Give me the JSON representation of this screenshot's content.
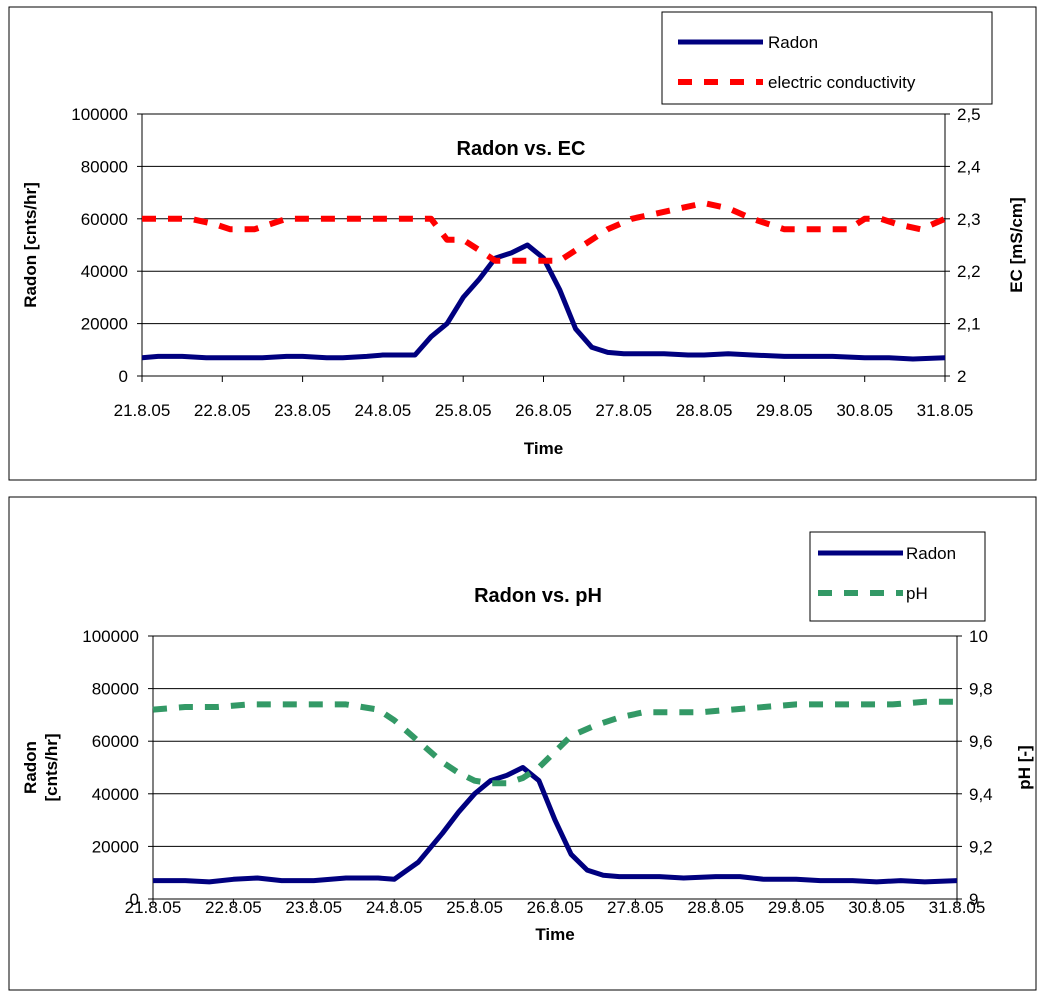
{
  "chart_data": [
    {
      "type": "line",
      "title": "Radon vs. EC",
      "xlabel": "Time",
      "ylabel": "Radon [cnts/hr]",
      "y2label": "EC [mS/cm]",
      "x_tick_labels": [
        "21.8.05",
        "22.8.05",
        "23.8.05",
        "24.8.05",
        "25.8.05",
        "26.8.05",
        "27.8.05",
        "28.8.05",
        "29.8.05",
        "30.8.05",
        "31.8.05"
      ],
      "x_range": [
        0,
        10
      ],
      "ylim": [
        0,
        100000
      ],
      "y_ticks": [
        "0",
        "20000",
        "40000",
        "60000",
        "80000",
        "100000"
      ],
      "y2lim": [
        2.0,
        2.5
      ],
      "y2_ticks": [
        "2",
        "2,1",
        "2,2",
        "2,3",
        "2,4",
        "2,5"
      ],
      "grid": true,
      "legend_position": "top-right",
      "series": [
        {
          "name": "Radon",
          "axis": "left",
          "color": "#00007F",
          "style": "solid",
          "x": [
            0,
            0.2,
            0.5,
            0.8,
            1.0,
            1.2,
            1.5,
            1.8,
            2.0,
            2.3,
            2.5,
            2.8,
            3.0,
            3.2,
            3.4,
            3.6,
            3.8,
            4.0,
            4.2,
            4.4,
            4.6,
            4.8,
            5.0,
            5.2,
            5.4,
            5.6,
            5.8,
            6.0,
            6.2,
            6.5,
            6.8,
            7.0,
            7.3,
            7.6,
            8.0,
            8.3,
            8.6,
            9.0,
            9.3,
            9.6,
            10.0
          ],
          "values": [
            7000,
            7500,
            7500,
            7000,
            7000,
            7000,
            7000,
            7500,
            7500,
            7000,
            7000,
            7500,
            8000,
            8000,
            8000,
            15000,
            20000,
            30000,
            37000,
            45000,
            47000,
            50000,
            45000,
            33000,
            18000,
            11000,
            9000,
            8500,
            8500,
            8500,
            8000,
            8000,
            8500,
            8000,
            7500,
            7500,
            7500,
            7000,
            7000,
            6500,
            7000
          ]
        },
        {
          "name": "electric conductivity",
          "axis": "right",
          "color": "#FF0000",
          "style": "dashed",
          "x": [
            0,
            0.3,
            0.6,
            0.9,
            1.1,
            1.4,
            1.8,
            2.2,
            2.6,
            3.0,
            3.3,
            3.6,
            3.8,
            4.0,
            4.2,
            4.4,
            4.6,
            4.9,
            5.2,
            5.5,
            5.8,
            6.1,
            6.4,
            6.7,
            7.0,
            7.3,
            7.6,
            8.0,
            8.4,
            8.8,
            9.0,
            9.2,
            9.4,
            9.7,
            10.0
          ],
          "values": [
            2.3,
            2.3,
            2.3,
            2.29,
            2.28,
            2.28,
            2.3,
            2.3,
            2.3,
            2.3,
            2.3,
            2.3,
            2.26,
            2.26,
            2.24,
            2.22,
            2.22,
            2.22,
            2.22,
            2.25,
            2.28,
            2.3,
            2.31,
            2.32,
            2.33,
            2.32,
            2.3,
            2.28,
            2.28,
            2.28,
            2.3,
            2.3,
            2.29,
            2.28,
            2.3
          ]
        }
      ]
    },
    {
      "type": "line",
      "title": "Radon vs. pH",
      "xlabel": "Time",
      "ylabel": "Radon [cnts/hr]",
      "y2label": "pH [-]",
      "x_tick_labels": [
        "21.8.05",
        "22.8.05",
        "23.8.05",
        "24.8.05",
        "25.8.05",
        "26.8.05",
        "27.8.05",
        "28.8.05",
        "29.8.05",
        "30.8.05",
        "31.8.05"
      ],
      "x_range": [
        0,
        10
      ],
      "ylim": [
        0,
        100000
      ],
      "y_ticks": [
        "0",
        "20000",
        "40000",
        "60000",
        "80000",
        "100000"
      ],
      "y2lim": [
        9.0,
        10.0
      ],
      "y2_ticks": [
        "9",
        "9,2",
        "9,4",
        "9,6",
        "9,8",
        "10"
      ],
      "grid": true,
      "legend_position": "top-right",
      "series": [
        {
          "name": "Radon",
          "axis": "left",
          "color": "#00007F",
          "style": "solid",
          "x": [
            0,
            0.4,
            0.7,
            1.0,
            1.3,
            1.6,
            2.0,
            2.4,
            2.8,
            3.0,
            3.3,
            3.6,
            3.8,
            4.0,
            4.2,
            4.4,
            4.6,
            4.8,
            5.0,
            5.2,
            5.4,
            5.6,
            5.8,
            6.0,
            6.3,
            6.6,
            7.0,
            7.3,
            7.6,
            8.0,
            8.3,
            8.7,
            9.0,
            9.3,
            9.6,
            10.0
          ],
          "values": [
            7000,
            7000,
            6500,
            7500,
            8000,
            7000,
            7000,
            8000,
            8000,
            7500,
            14000,
            25000,
            33000,
            40000,
            45000,
            47000,
            50000,
            45000,
            30000,
            17000,
            11000,
            9000,
            8500,
            8500,
            8500,
            8000,
            8500,
            8500,
            7500,
            7500,
            7000,
            7000,
            6500,
            7000,
            6500,
            7000
          ]
        },
        {
          "name": "pH",
          "axis": "right",
          "color": "#339966",
          "style": "dashed",
          "x": [
            0,
            0.4,
            0.8,
            1.2,
            1.6,
            2.0,
            2.4,
            2.8,
            3.0,
            3.3,
            3.6,
            3.8,
            4.0,
            4.2,
            4.4,
            4.6,
            4.8,
            5.0,
            5.2,
            5.5,
            5.8,
            6.1,
            6.4,
            6.8,
            7.2,
            7.6,
            8.0,
            8.4,
            8.8,
            9.2,
            9.6,
            10.0
          ],
          "values": [
            9.72,
            9.73,
            9.73,
            9.74,
            9.74,
            9.74,
            9.74,
            9.72,
            9.68,
            9.6,
            9.52,
            9.48,
            9.45,
            9.44,
            9.44,
            9.46,
            9.5,
            9.56,
            9.62,
            9.66,
            9.69,
            9.71,
            9.71,
            9.71,
            9.72,
            9.73,
            9.74,
            9.74,
            9.74,
            9.74,
            9.75,
            9.75
          ]
        }
      ]
    }
  ]
}
